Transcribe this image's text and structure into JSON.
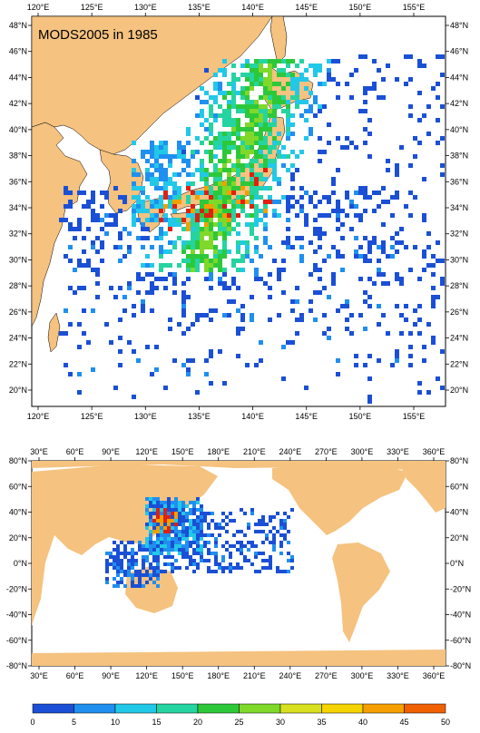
{
  "map_top": {
    "title": "MODS2005 in 1985",
    "lon_ticks": [
      "120°E",
      "125°E",
      "130°E",
      "135°E",
      "140°E",
      "145°E",
      "150°E",
      "155°E"
    ],
    "lat_ticks": [
      "48°N",
      "46°N",
      "44°N",
      "42°N",
      "40°N",
      "38°N",
      "36°N",
      "34°N",
      "32°N",
      "30°N",
      "28°N",
      "26°N",
      "24°N",
      "22°N",
      "20°N"
    ]
  },
  "map_bottom": {
    "lon_ticks": [
      "30°E",
      "60°E",
      "90°E",
      "120°E",
      "150°E",
      "180°E",
      "210°E",
      "240°E",
      "270°E",
      "300°E",
      "330°E",
      "360°E"
    ],
    "lat_ticks": [
      "80°N",
      "60°N",
      "40°N",
      "20°N",
      "0°N",
      "-20°N",
      "-40°N",
      "-60°N",
      "-80°N"
    ]
  },
  "colorbar": {
    "labels": [
      "0",
      "5",
      "10",
      "15",
      "20",
      "25",
      "30",
      "35",
      "40",
      "45",
      "50"
    ],
    "colors": [
      "#1a4fd6",
      "#1f8ff0",
      "#22c8e8",
      "#25d4a0",
      "#2dc83a",
      "#7fd82a",
      "#d8e020",
      "#f5d400",
      "#f5a000",
      "#f06000"
    ]
  },
  "colors": {
    "land": "#f5c27f",
    "ocean": "#ffffff",
    "high": "#e02010"
  }
}
